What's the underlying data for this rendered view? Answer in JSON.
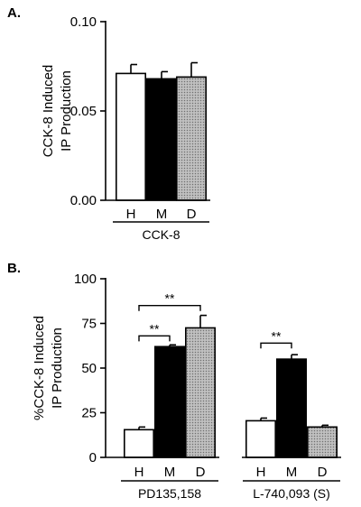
{
  "colors": {
    "H": "#ffffff",
    "M": "#000000",
    "D": "#b4b4b4",
    "axis": "#000000"
  },
  "chart_data": [
    {
      "type": "bar",
      "panel": "A.",
      "ylabel_lines": [
        "CCK-8 Induced",
        "IP Production"
      ],
      "ylim": [
        0,
        0.1
      ],
      "yticks": [
        0.0,
        0.05,
        0.1
      ],
      "ytick_labels": [
        "0.00",
        "0.05",
        "0.10"
      ],
      "groups": [
        {
          "label": "CCK-8",
          "categories": [
            "H",
            "M",
            "D"
          ],
          "values": [
            0.071,
            0.068,
            0.069
          ],
          "errors": [
            0.005,
            0.004,
            0.008
          ]
        }
      ],
      "annotations": []
    },
    {
      "type": "bar",
      "panel": "B.",
      "ylabel_lines": [
        "%CCK-8 Induced",
        "IP Production"
      ],
      "ylim": [
        0,
        100
      ],
      "yticks": [
        0,
        25,
        50,
        75,
        100
      ],
      "ytick_labels": [
        "0",
        "25",
        "50",
        "75",
        "100"
      ],
      "groups": [
        {
          "label": "PD135,158",
          "categories": [
            "H",
            "M",
            "D"
          ],
          "values": [
            15.5,
            62,
            72.5
          ],
          "errors": [
            1.5,
            1,
            7
          ]
        },
        {
          "label": "L-740,093 (S)",
          "categories": [
            "H",
            "M",
            "D"
          ],
          "values": [
            20.5,
            55,
            17
          ],
          "errors": [
            1.5,
            2.5,
            1
          ]
        }
      ],
      "annotations": [
        {
          "text": "**",
          "group": 0,
          "from": 0,
          "to": 1,
          "y": 68
        },
        {
          "text": "**",
          "group": 0,
          "from": 0,
          "to": 2,
          "y": 85
        },
        {
          "text": "**",
          "group": 1,
          "from": 0,
          "to": 1,
          "y": 64
        }
      ]
    }
  ]
}
